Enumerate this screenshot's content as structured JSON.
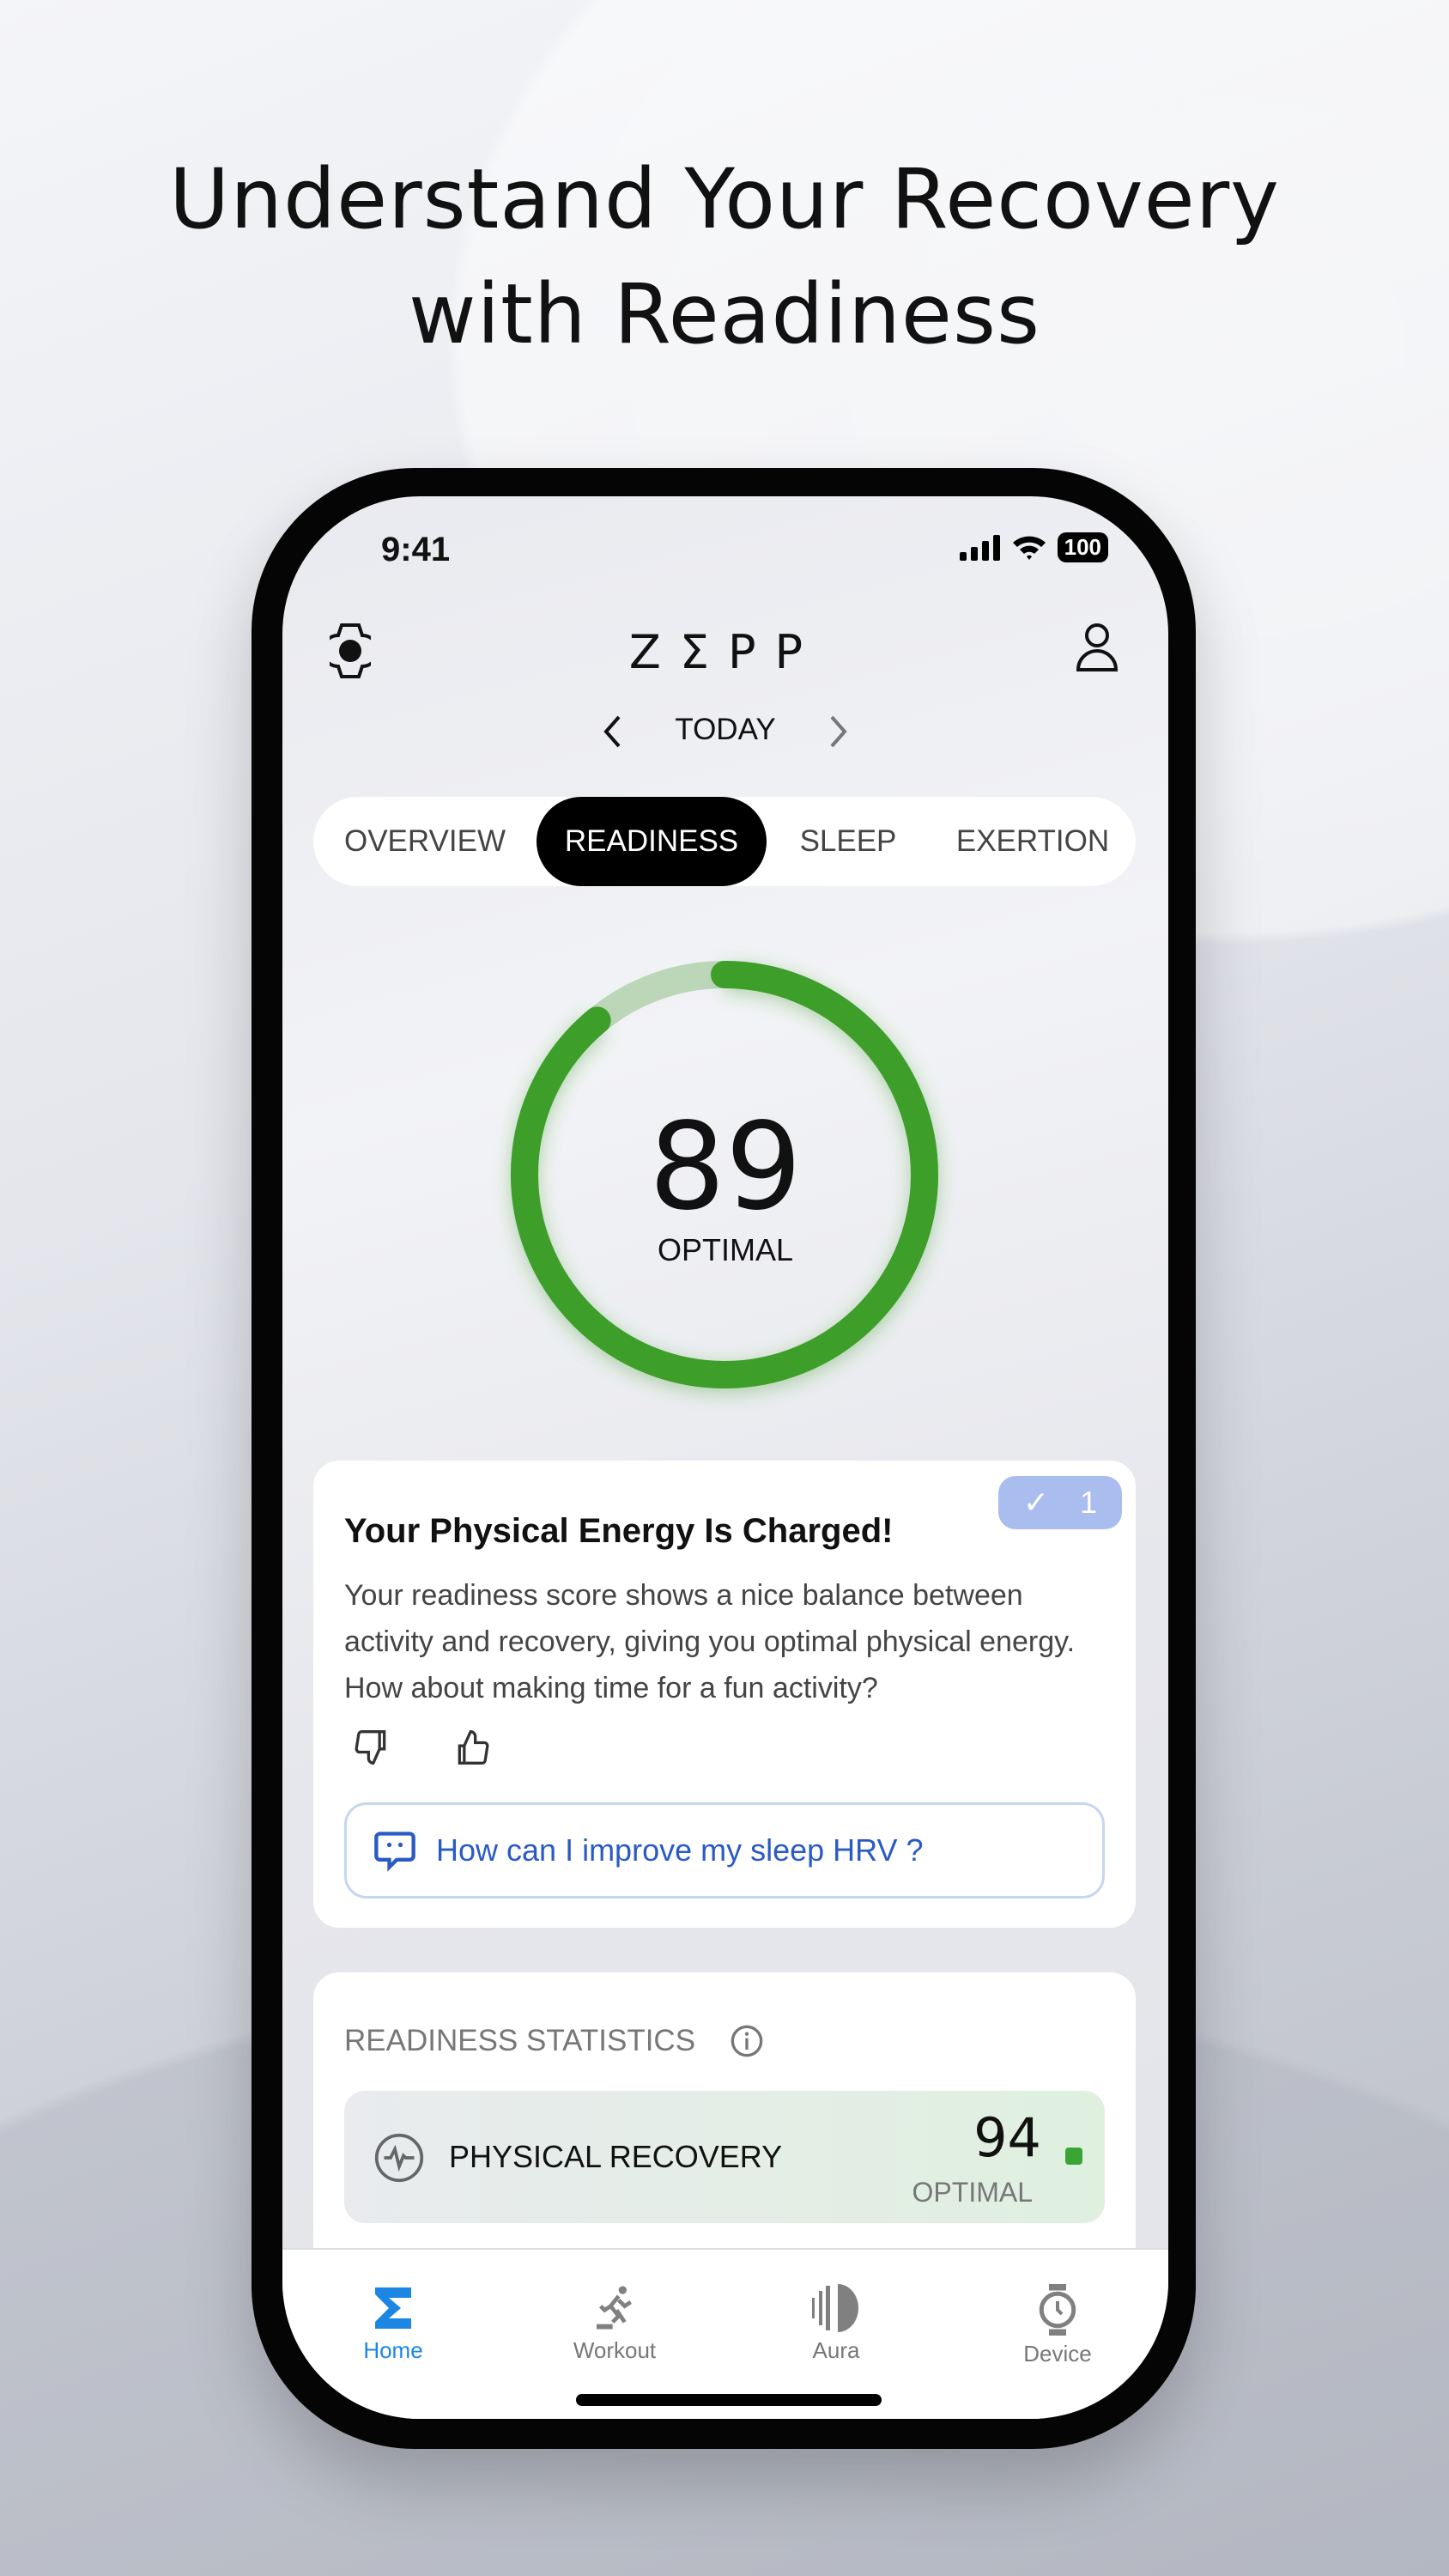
{
  "headline": [
    "Understand Your Recovery",
    "with Readiness"
  ],
  "status": {
    "time": "9:41",
    "battery": "100"
  },
  "header": {
    "logo": "ZΣPP",
    "date": "TODAY",
    "left_icon": "watch-icon",
    "right_icon": "profile-icon"
  },
  "tabs": [
    {
      "label": "OVERVIEW"
    },
    {
      "label": "READINESS",
      "active": true
    },
    {
      "label": "SLEEP"
    },
    {
      "label": "EXERTION"
    }
  ],
  "readiness": {
    "score": "89",
    "status": "OPTIMAL",
    "progress_percent": 89,
    "color": "#3e9e2a"
  },
  "insight": {
    "badge_count": "1",
    "title": "Your Physical Energy Is Charged!",
    "body": "Your readiness score shows a nice balance between activity and recovery, giving you optimal physical energy. How about making time for a fun activity?",
    "ask": "How can I improve my sleep HRV ?"
  },
  "statistics": {
    "title": "READINESS STATISTICS",
    "items": [
      {
        "label": "PHYSICAL RECOVERY",
        "value": "94",
        "status": "OPTIMAL",
        "status_color": "#3aa535"
      }
    ]
  },
  "nav": [
    {
      "label": "Home",
      "active": true
    },
    {
      "label": "Workout"
    },
    {
      "label": "Aura"
    },
    {
      "label": "Device"
    }
  ],
  "colors": {
    "accent": "#1b86e3",
    "ring": "#3e9e2a",
    "link": "#2a5bc4"
  }
}
